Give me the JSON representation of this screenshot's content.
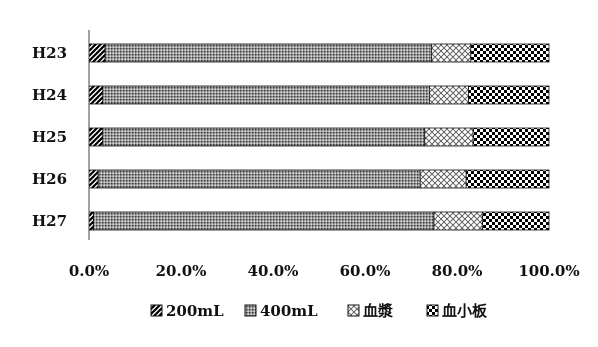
{
  "chart_data": {
    "type": "bar",
    "orientation": "horizontal",
    "stacked": "percent",
    "title": "",
    "xlabel": "",
    "ylabel": "",
    "categories": [
      "H23",
      "H24",
      "H25",
      "H26",
      "H27"
    ],
    "xlim": [
      0,
      100
    ],
    "x_ticks": [
      "0.0%",
      "20.0%",
      "40.0%",
      "60.0%",
      "80.0%",
      "100.0%"
    ],
    "grid": false,
    "legend_position": "bottom",
    "series": [
      {
        "name": "200mL",
        "pattern": "diagonal-hatch",
        "values": [
          3.5,
          3.0,
          3.0,
          2.0,
          1.0
        ]
      },
      {
        "name": "400mL",
        "pattern": "dense-dots",
        "values": [
          71.0,
          71.0,
          70.0,
          70.0,
          74.0
        ]
      },
      {
        "name": "血漿",
        "pattern": "diamond-lattice",
        "values": [
          8.5,
          8.5,
          10.5,
          10.0,
          10.5
        ]
      },
      {
        "name": "血小板",
        "pattern": "checkerboard",
        "values": [
          17.0,
          17.5,
          16.5,
          18.0,
          14.5
        ]
      }
    ]
  }
}
